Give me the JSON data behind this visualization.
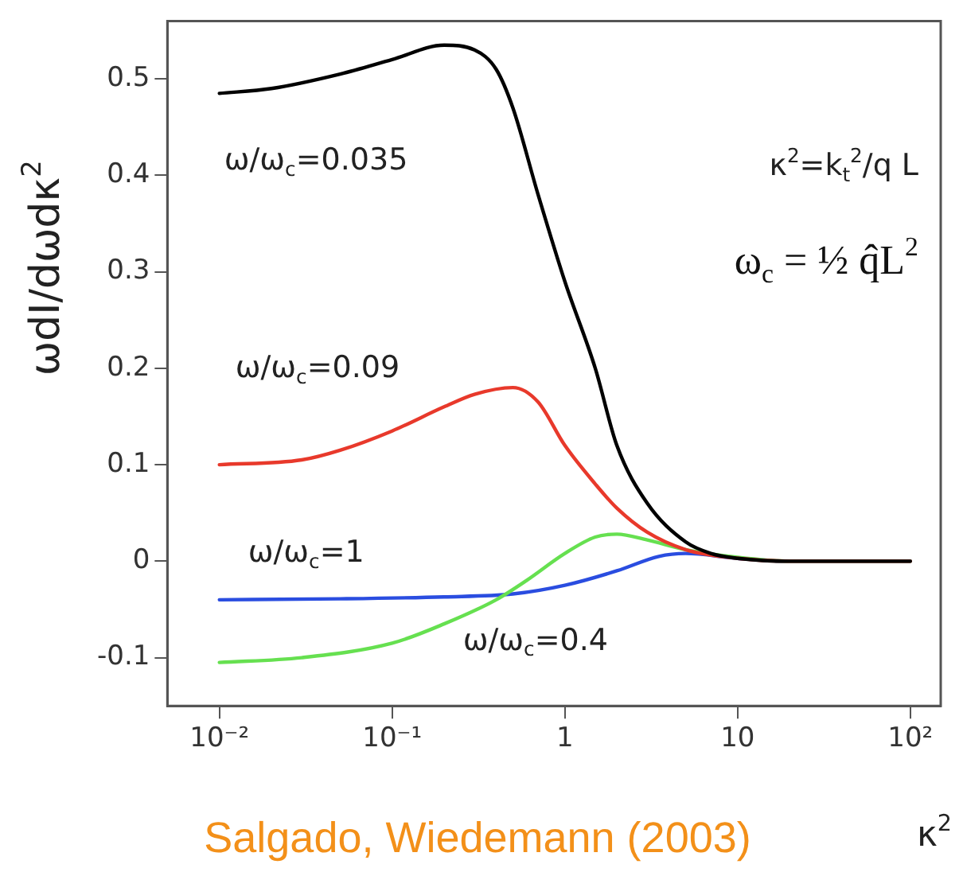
{
  "chart_data": {
    "type": "line",
    "ylabel": "ωdI/dωdκ$^{2}$",
    "xlabel": "κ$^{2}$",
    "log": "x",
    "xlim": [
      0.005,
      150
    ],
    "xticks": [
      {
        "value": 0.01,
        "label": "10⁻²"
      },
      {
        "value": 0.1,
        "label": "10⁻¹"
      },
      1,
      10,
      {
        "value": 100,
        "label": "10²"
      }
    ],
    "ylim": [
      -0.15,
      0.56
    ],
    "yticks": [
      -0.1,
      0,
      0.1,
      0.2,
      0.3,
      0.4,
      0.5
    ],
    "grid": false,
    "legend": false,
    "marker": "none",
    "line_style": "solid",
    "annotations": [
      "κ$^{2}$=k$_{t}$$^{2}$/q L",
      "ω$_{c}$ = ½ q̂L$^{2}$",
      "Salgado, Wiedemann (2003)"
    ],
    "series": [
      {
        "name": "ω/ω$_{c}$=0.035",
        "color": "#000000",
        "x": [
          0.01,
          0.02,
          0.05,
          0.1,
          0.2,
          0.3,
          0.4,
          0.5,
          0.7,
          1,
          1.5,
          2,
          3,
          5,
          7,
          10,
          20,
          100
        ],
        "values": [
          0.485,
          0.49,
          0.505,
          0.52,
          0.535,
          0.53,
          0.51,
          0.47,
          0.38,
          0.29,
          0.2,
          0.12,
          0.06,
          0.02,
          0.008,
          0.003,
          0,
          0
        ]
      },
      {
        "name": "ω/ω$_{c}$=0.09",
        "color": "#e8392b",
        "x": [
          0.01,
          0.03,
          0.05,
          0.1,
          0.2,
          0.3,
          0.5,
          0.7,
          1,
          1.5,
          2,
          3,
          5,
          10,
          20,
          100
        ],
        "values": [
          0.1,
          0.105,
          0.115,
          0.135,
          0.16,
          0.173,
          0.18,
          0.165,
          0.12,
          0.08,
          0.055,
          0.03,
          0.012,
          0.003,
          0,
          0
        ]
      },
      {
        "name": "ω/ω$_{c}$=0.4",
        "color": "#66e050",
        "x": [
          0.01,
          0.03,
          0.1,
          0.2,
          0.4,
          0.6,
          1,
          1.5,
          2,
          3,
          5,
          10,
          20,
          100
        ],
        "values": [
          -0.105,
          -0.1,
          -0.085,
          -0.065,
          -0.04,
          -0.02,
          0.008,
          0.025,
          0.028,
          0.022,
          0.012,
          0.004,
          0,
          0
        ]
      },
      {
        "name": "ω/ω$_{c}$=1",
        "color": "#2a4de0",
        "x": [
          0.01,
          0.05,
          0.2,
          0.5,
          1,
          2,
          3.5,
          5,
          10,
          20,
          100
        ],
        "values": [
          -0.04,
          -0.039,
          -0.037,
          -0.034,
          -0.025,
          -0.01,
          0.005,
          0.008,
          0.003,
          0,
          0
        ]
      }
    ]
  }
}
